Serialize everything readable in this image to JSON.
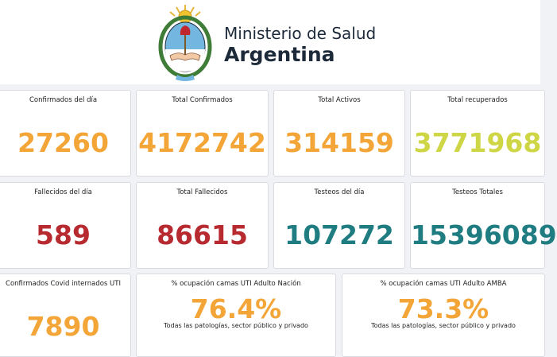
{
  "header": {
    "title_line1": "Ministerio de Salud",
    "title_line2": "Argentina"
  },
  "colors": {
    "orange": "#f3a537",
    "yellowgreen": "#cfd645",
    "red": "#b72a30",
    "teal": "#1f7d82"
  },
  "row1": [
    {
      "label": "Confirmados del día",
      "value": "27260"
    },
    {
      "label": "Total Confirmados",
      "value": "4172742"
    },
    {
      "label": "Total Activos",
      "value": "314159"
    },
    {
      "label": "Total recuperados",
      "value": "3771968"
    }
  ],
  "row2": [
    {
      "label": "Fallecidos del día",
      "value": "589"
    },
    {
      "label": "Total Fallecidos",
      "value": "86615"
    },
    {
      "label": "Testeos del día",
      "value": "107272"
    },
    {
      "label": "Testeos Totales",
      "value": "15396089"
    }
  ],
  "row3": [
    {
      "label": "Confirmados Covid internados UTI",
      "value": "7890"
    },
    {
      "label": "% ocupación camas UTI Adulto Nación",
      "value": "76.4%",
      "note": "Todas las patologías, sector público y privado"
    },
    {
      "label": "% ocupación camas UTI Adulto AMBA",
      "value": "73.3%",
      "note": "Todas las patologías, sector público y privado"
    }
  ]
}
